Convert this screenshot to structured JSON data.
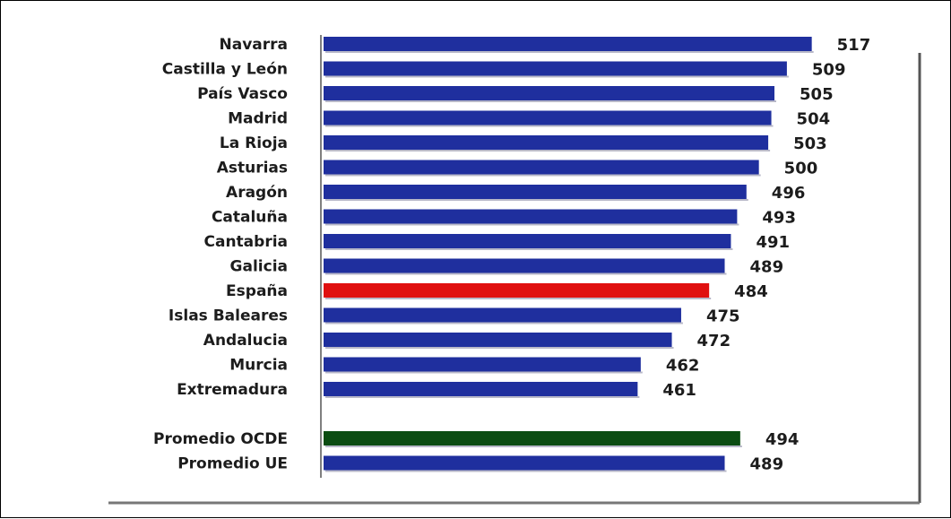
{
  "chart_data": {
    "type": "bar",
    "orientation": "horizontal",
    "categories": [
      "Navarra",
      "Castilla y León",
      "País Vasco",
      "Madrid",
      "La Rioja",
      "Asturias",
      "Aragón",
      "Cataluña",
      "Cantabria",
      "Galicia",
      "España",
      "Islas Baleares",
      "Andalucia",
      "Murcia",
      "Extremadura",
      "",
      "Promedio OCDE",
      "Promedio UE"
    ],
    "values": [
      517,
      509,
      505,
      504,
      503,
      500,
      496,
      493,
      491,
      489,
      484,
      475,
      472,
      462,
      461,
      null,
      494,
      489
    ],
    "value_labels": [
      "517",
      "509",
      "505",
      "504",
      "503",
      "500",
      "496",
      "493",
      "491",
      "489",
      "484",
      "475",
      "472",
      "462",
      "461",
      "",
      "494",
      "489"
    ],
    "bar_colors": [
      "#1f2f9e",
      "#1f2f9e",
      "#1f2f9e",
      "#1f2f9e",
      "#1f2f9e",
      "#1f2f9e",
      "#1f2f9e",
      "#1f2f9e",
      "#1f2f9e",
      "#1f2f9e",
      "#e01010",
      "#1f2f9e",
      "#1f2f9e",
      "#1f2f9e",
      "#1f2f9e",
      "",
      "#0b4d12",
      "#1f2f9e"
    ],
    "xlim": [
      360,
      522
    ],
    "title": "",
    "xlabel": "",
    "ylabel": "",
    "grid": false,
    "legend": "none"
  }
}
